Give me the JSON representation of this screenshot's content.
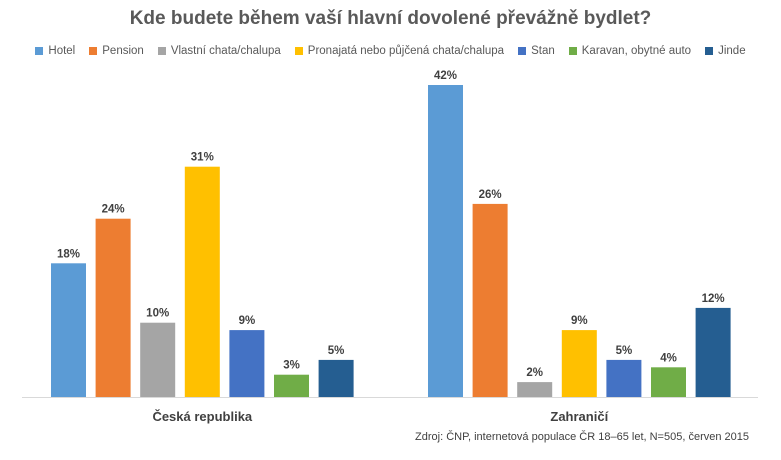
{
  "chart_data": {
    "type": "bar",
    "title": "Kde budete během vaší hlavní dovolené převážně bydlet?",
    "categories": [
      "Česká republika",
      "Zahraničí"
    ],
    "series": [
      {
        "name": "Hotel",
        "color": "#5B9BD5",
        "values": [
          18,
          42
        ]
      },
      {
        "name": "Pension",
        "color": "#ED7D31",
        "values": [
          24,
          26
        ]
      },
      {
        "name": "Vlastní chata/chalupa",
        "color": "#A5A5A5",
        "values": [
          10,
          2
        ]
      },
      {
        "name": "Pronajatá nebo půjčená chata/chalupa",
        "color": "#FFC000",
        "values": [
          31,
          9
        ]
      },
      {
        "name": "Stan",
        "color": "#4472C4",
        "values": [
          9,
          5
        ]
      },
      {
        "name": "Karavan, obytné auto",
        "color": "#70AD47",
        "values": [
          3,
          4
        ]
      },
      {
        "name": "Jinde",
        "color": "#255E91",
        "values": [
          5,
          12
        ]
      }
    ],
    "value_suffix": "%",
    "ylim": [
      0,
      42
    ],
    "legend_position": "top",
    "grid": false,
    "source": "Zdroj: ČNP, internetová populace ČR 18–65 let, N=505, červen 2015"
  }
}
